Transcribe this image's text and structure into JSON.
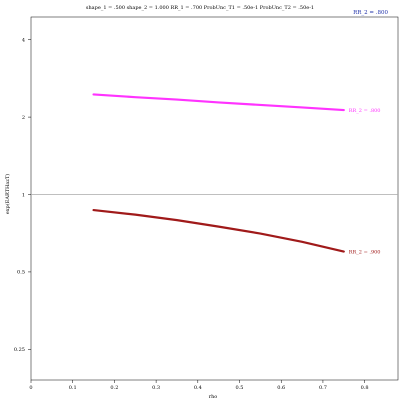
{
  "chart_data": {
    "type": "line",
    "title": "shape_1 = .500  shape_2 = 1.000  RR_1 = .700  ProbUnc_T1 = .50e-1  ProbUnc_T2 = .50e-1",
    "xlabel": "rho",
    "ylabel": "exp(EARTHazT)",
    "y_scale": "log",
    "xlim": [
      0,
      0.88
    ],
    "ylim": [
      0.19,
      4.9
    ],
    "x_ticks": [
      0,
      0.1,
      0.2,
      0.3,
      0.4,
      0.5,
      0.6,
      0.7,
      0.8
    ],
    "x_tick_labels": [
      "0",
      "0.1",
      "0.2",
      "0.3",
      "0.4",
      "0.5",
      "0.6",
      "0.7",
      "0.8"
    ],
    "y_ticks": [
      0.25,
      0.5,
      1,
      2,
      4
    ],
    "y_tick_labels": [
      "0.25",
      "0.5",
      "1",
      "2",
      "4"
    ],
    "reference_line_y": 1,
    "legend_text": "RR_2 = .800",
    "colors": {
      "legend": "#2233aa",
      "reference": "#aaaaaa",
      "axis": "#000000"
    },
    "series": [
      {
        "name": "RR_2 = .800",
        "color": "#ff33ff",
        "x": [
          0.15,
          0.25,
          0.35,
          0.45,
          0.55,
          0.65,
          0.75
        ],
        "y": [
          2.45,
          2.39,
          2.34,
          2.28,
          2.23,
          2.18,
          2.13
        ]
      },
      {
        "name": "RR_2 = .900",
        "color": "#a01a1a",
        "x": [
          0.15,
          0.25,
          0.35,
          0.45,
          0.55,
          0.65,
          0.75
        ],
        "y": [
          0.87,
          0.835,
          0.795,
          0.75,
          0.705,
          0.655,
          0.6
        ]
      }
    ]
  }
}
